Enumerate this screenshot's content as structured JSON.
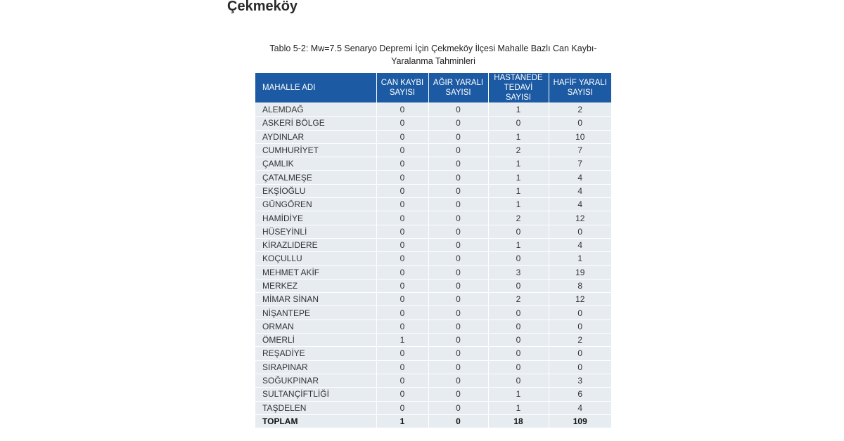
{
  "heading": "Çekmeköy",
  "caption": {
    "line1": "Tablo 5-2: Mw=7.5 Senaryo Depremi İçin Çekmeköy İlçesi Mahalle Bazlı Can Kaybı-",
    "line2": "Yaralanma Tahminleri"
  },
  "table": {
    "headers": [
      {
        "l1": "MAHALLE ADI",
        "l2": ""
      },
      {
        "l1": "CAN KAYBI",
        "l2": "SAYISI"
      },
      {
        "l1": "AĞIR YARALI",
        "l2": "SAYISI"
      },
      {
        "l1": "HASTANEDE",
        "l2": "TEDAVİ SAYISI"
      },
      {
        "l1": "HAFİF YARALI",
        "l2": "SAYISI"
      }
    ],
    "rows": [
      [
        "ALEMDAĞ",
        "0",
        "0",
        "1",
        "2"
      ],
      [
        "ASKERİ BÖLGE",
        "0",
        "0",
        "0",
        "0"
      ],
      [
        "AYDINLAR",
        "0",
        "0",
        "1",
        "10"
      ],
      [
        "CUMHURİYET",
        "0",
        "0",
        "2",
        "7"
      ],
      [
        "ÇAMLIK",
        "0",
        "0",
        "1",
        "7"
      ],
      [
        "ÇATALMEŞE",
        "0",
        "0",
        "1",
        "4"
      ],
      [
        "EKŞİOĞLU",
        "0",
        "0",
        "1",
        "4"
      ],
      [
        "GÜNGÖREN",
        "0",
        "0",
        "1",
        "4"
      ],
      [
        "HAMİDİYE",
        "0",
        "0",
        "2",
        "12"
      ],
      [
        "HÜSEYİNLİ",
        "0",
        "0",
        "0",
        "0"
      ],
      [
        "KİRAZLIDERE",
        "0",
        "0",
        "1",
        "4"
      ],
      [
        "KOÇULLU",
        "0",
        "0",
        "0",
        "1"
      ],
      [
        "MEHMET AKİF",
        "0",
        "0",
        "3",
        "19"
      ],
      [
        "MERKEZ",
        "0",
        "0",
        "0",
        "8"
      ],
      [
        "MİMAR SİNAN",
        "0",
        "0",
        "2",
        "12"
      ],
      [
        "NİŞANTEPE",
        "0",
        "0",
        "0",
        "0"
      ],
      [
        "ORMAN",
        "0",
        "0",
        "0",
        "0"
      ],
      [
        "ÖMERLİ",
        "1",
        "0",
        "0",
        "2"
      ],
      [
        "REŞADİYE",
        "0",
        "0",
        "0",
        "0"
      ],
      [
        "SIRAPINAR",
        "0",
        "0",
        "0",
        "0"
      ],
      [
        "SOĞUKPINAR",
        "0",
        "0",
        "0",
        "3"
      ],
      [
        "SULTANÇİFTLİĞİ",
        "0",
        "0",
        "1",
        "6"
      ],
      [
        "TAŞDELEN",
        "0",
        "0",
        "1",
        "4"
      ]
    ],
    "total": [
      "TOPLAM",
      "1",
      "0",
      "18",
      "109"
    ]
  },
  "colors": {
    "header_bg": "#1c5aa3",
    "row_bg": "#e7ecf1"
  }
}
